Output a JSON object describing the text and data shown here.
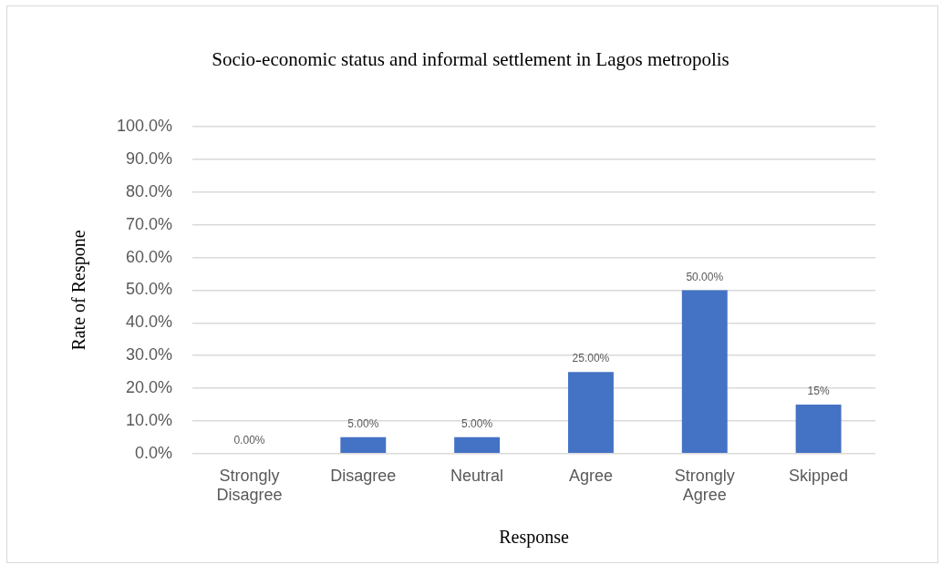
{
  "chart_data": {
    "type": "bar",
    "title": "Socio-economic status and informal settlement in Lagos metropolis",
    "xlabel": "Response",
    "ylabel": "Rate of Respone",
    "categories": [
      "Strongly Disagree",
      "Disagree",
      "Neutral",
      "Agree",
      "Strongly Agree",
      "Skipped"
    ],
    "values": [
      0,
      5,
      5,
      25,
      50,
      15
    ],
    "value_labels": [
      "0.00%",
      "5.00%",
      "5.00%",
      "25.00%",
      "50.00%",
      "15%"
    ],
    "color": "#4472c4",
    "ylim": [
      0,
      100
    ],
    "yticks": [
      {
        "value": 0,
        "label": "0.0%"
      },
      {
        "value": 10,
        "label": "10.0%"
      },
      {
        "value": 20,
        "label": "20.0%"
      },
      {
        "value": 30,
        "label": "30.0%"
      },
      {
        "value": 40,
        "label": "40.0%"
      },
      {
        "value": 50,
        "label": "50.0%"
      },
      {
        "value": 60,
        "label": "60.0%"
      },
      {
        "value": 70,
        "label": "70.0%"
      },
      {
        "value": 80,
        "label": "80.0%"
      },
      {
        "value": 90,
        "label": "90.0%"
      },
      {
        "value": 100,
        "label": "100.0%"
      }
    ],
    "grid": "y"
  }
}
